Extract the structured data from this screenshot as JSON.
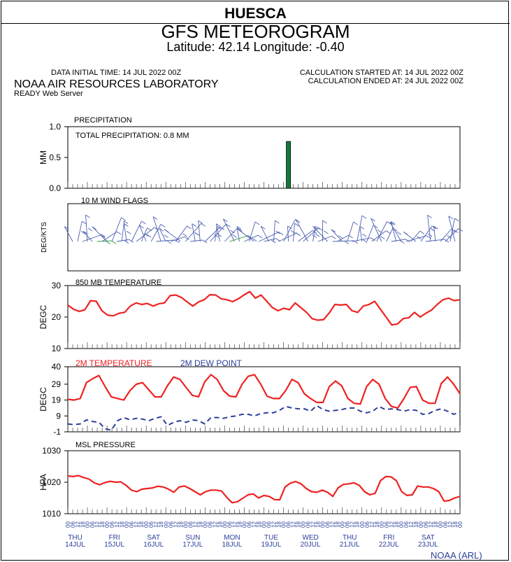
{
  "header": {
    "site": "HUESCA",
    "title": "GFS METEOROGRAM",
    "coords": "Latitude: 42.14 Longitude:  -0.40",
    "initial_time": "DATA INITIAL TIME: 14 JUL 2022 00Z",
    "calc_started": "CALCULATION STARTED AT: 14 JUL 2022 00Z",
    "calc_ended": "CALCULATION ENDED AT: 24 JUL 2022 00Z",
    "lab": "NOAA AIR RESOURCES LABORATORY",
    "server": "READY Web Server",
    "footer": "NOAA (ARL)"
  },
  "days": [
    {
      "dow": "THU",
      "date": "14JUL"
    },
    {
      "dow": "FRI",
      "date": "15JUL"
    },
    {
      "dow": "SAT",
      "date": "16JUL"
    },
    {
      "dow": "SUN",
      "date": "17JUL"
    },
    {
      "dow": "MON",
      "date": "18JUL"
    },
    {
      "dow": "TUE",
      "date": "19JUL"
    },
    {
      "dow": "WED",
      "date": "20JUL"
    },
    {
      "dow": "THU",
      "date": "21JUL"
    },
    {
      "dow": "FRI",
      "date": "22JUL"
    },
    {
      "dow": "SAT",
      "date": "23JUL"
    }
  ],
  "hours_label": [
    "00",
    "06",
    "12",
    "18"
  ],
  "colors": {
    "temp": "#ee2222",
    "dew": "#2a3f9a",
    "precip": "#127a3a",
    "wind": "#4a5fb0",
    "wind_green": "#2a9a3a",
    "blue_text": "#2a3f9a"
  },
  "chart_data": [
    {
      "type": "bar",
      "title": "PRECIPITATION",
      "annotation": "TOTAL PRECIPITATION:  0.8 MM",
      "ylabel": "MM",
      "ylim": [
        0,
        1
      ],
      "yticks": [
        "0.0",
        "0.5",
        "1.0"
      ],
      "bars": [
        {
          "step": 45,
          "value": 0.76
        }
      ]
    },
    {
      "type": "wind",
      "title": "10 M  WIND FLAGS",
      "ylabel": "DEG/KTS"
    },
    {
      "type": "line",
      "title": "850 MB  TEMPERATURE",
      "ylabel": "DEGC",
      "ylim": [
        10,
        30
      ],
      "yticks": [
        "10",
        "20",
        "30"
      ],
      "series": [
        {
          "values": [
            23.8,
            22.5,
            21.8,
            22.3,
            25.2,
            25.0,
            22.0,
            20.6,
            20.4,
            21.2,
            21.5,
            23.5,
            24.5,
            24.0,
            24.3,
            23.5,
            24.2,
            24.5,
            26.8,
            27.0,
            26.2,
            24.8,
            23.5,
            24.8,
            25.5,
            27.1,
            27.0,
            25.8,
            25.5,
            24.9,
            25.8,
            27.0,
            28.1,
            26.0,
            27.0,
            25.0,
            23.0,
            22.0,
            22.8,
            22.3,
            24.5,
            23.0,
            21.5,
            19.5,
            19.0,
            19.2,
            21.3,
            24.0,
            23.8,
            24.0,
            22.0,
            21.5,
            23.5,
            24.0,
            25.0,
            22.5,
            20.0,
            17.5,
            17.8,
            19.5,
            19.8,
            21.5,
            20.0,
            21.2,
            22.2,
            24.0,
            25.5,
            26.0,
            25.2,
            25.5
          ]
        }
      ]
    },
    {
      "type": "line",
      "ylabel": "DEGC",
      "ylim": [
        -1,
        40
      ],
      "yticks": [
        "-1",
        "9",
        "19",
        "29",
        "40"
      ],
      "series": [
        {
          "name": "2M TEMPERATURE",
          "values": [
            19.5,
            19.0,
            20.0,
            30.0,
            32.5,
            34.5,
            27.5,
            21.0,
            20.0,
            19.0,
            25.0,
            29.0,
            30.0,
            25.5,
            21.0,
            21.0,
            28.0,
            33.5,
            32.0,
            27.0,
            22.0,
            21.0,
            30.5,
            35.0,
            32.0,
            25.0,
            21.5,
            21.0,
            29.0,
            34.0,
            35.0,
            29.0,
            21.5,
            20.0,
            20.0,
            25.0,
            32.0,
            30.0,
            23.0,
            20.0,
            17.5,
            17.5,
            27.5,
            31.0,
            28.0,
            20.0,
            17.0,
            16.5,
            27.5,
            32.0,
            29.0,
            20.0,
            15.0,
            14.0,
            20.0,
            27.0,
            27.5,
            19.0,
            17.0,
            17.0,
            29.5,
            33.5,
            29.0,
            23.0
          ]
        },
        {
          "name": "2M  DEW POINT",
          "values": [
            4.0,
            3.5,
            4.0,
            6.5,
            5.5,
            5.0,
            1.0,
            0.0,
            6.0,
            8.0,
            6.5,
            7.5,
            7.0,
            6.0,
            7.5,
            8.5,
            3.0,
            5.0,
            6.0,
            5.0,
            6.5,
            6.0,
            4.0,
            8.0,
            8.0,
            7.5,
            8.5,
            9.0,
            10.0,
            10.0,
            9.0,
            10.5,
            11.0,
            11.0,
            12.5,
            15.0,
            14.0,
            13.5,
            13.5,
            12.0,
            15.5,
            13.0,
            12.0,
            12.5,
            13.0,
            14.0,
            14.0,
            12.0,
            11.0,
            12.0,
            15.0,
            13.0,
            13.5,
            13.0,
            12.0,
            13.0,
            12.5,
            10.0,
            10.5,
            12.5,
            13.5,
            12.0,
            10.0,
            11.5
          ]
        }
      ]
    },
    {
      "type": "line",
      "title": "MSL PRESSURE",
      "ylabel": "HPA",
      "ylim": [
        1010,
        1030
      ],
      "yticks": [
        "1010",
        "1020",
        "1030"
      ],
      "series": [
        {
          "values": [
            1022.0,
            1021.8,
            1022.1,
            1021.5,
            1021.0,
            1019.8,
            1019.2,
            1019.9,
            1020.3,
            1020.0,
            1020.1,
            1019.0,
            1017.5,
            1017.0,
            1017.8,
            1018.0,
            1018.2,
            1018.7,
            1018.5,
            1017.8,
            1016.8,
            1018.5,
            1018.8,
            1018.0,
            1017.0,
            1016.0,
            1017.0,
            1017.5,
            1017.5,
            1017.2,
            1015.2,
            1013.5,
            1013.8,
            1014.9,
            1016.0,
            1016.3,
            1015.0,
            1015.8,
            1015.5,
            1014.5,
            1014.4,
            1018.5,
            1019.7,
            1020.2,
            1019.5,
            1018.0,
            1017.0,
            1016.8,
            1017.5,
            1016.8,
            1015.5,
            1018.2,
            1019.3,
            1019.5,
            1019.8,
            1019.0,
            1017.0,
            1016.0,
            1016.5,
            1020.5,
            1021.8,
            1021.7,
            1020.5,
            1017.0,
            1015.8,
            1016.0,
            1018.8,
            1018.5,
            1018.5,
            1018.0,
            1017.0,
            1014.0,
            1014.2,
            1015.0,
            1015.5
          ]
        }
      ]
    }
  ]
}
